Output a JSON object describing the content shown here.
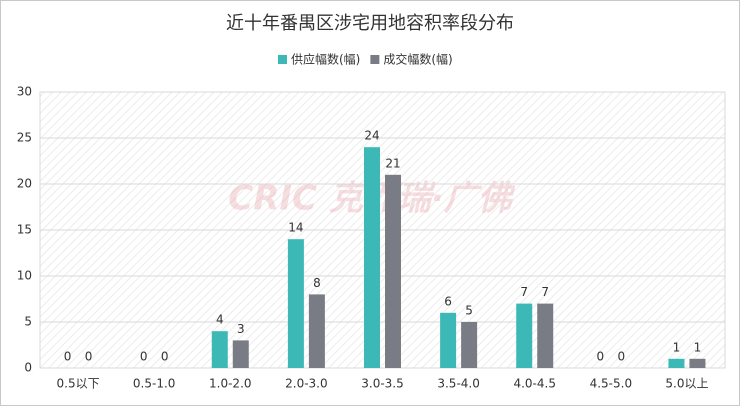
{
  "chart_data": {
    "type": "bar",
    "title": "近十年番禺区涉宅用地容积率段分布",
    "watermark": "CRIC 克而瑞·广佛",
    "categories": [
      "0.5以下",
      "0.5-1.0",
      "1.0-2.0",
      "2.0-3.0",
      "3.0-3.5",
      "3.5-4.0",
      "4.0-4.5",
      "4.5-5.0",
      "5.0以上"
    ],
    "series": [
      {
        "name": "供应幅数(幅)",
        "color": "#3cb8b6",
        "values": [
          0,
          0,
          4,
          14,
          24,
          6,
          7,
          0,
          1
        ]
      },
      {
        "name": "成交幅数(幅)",
        "color": "#7a7c85",
        "values": [
          0,
          0,
          3,
          8,
          21,
          5,
          7,
          0,
          1
        ]
      }
    ],
    "ylim": [
      0,
      30
    ],
    "yticks": [
      0,
      5,
      10,
      15,
      20,
      25,
      30
    ],
    "grid": true,
    "legend": "top"
  }
}
